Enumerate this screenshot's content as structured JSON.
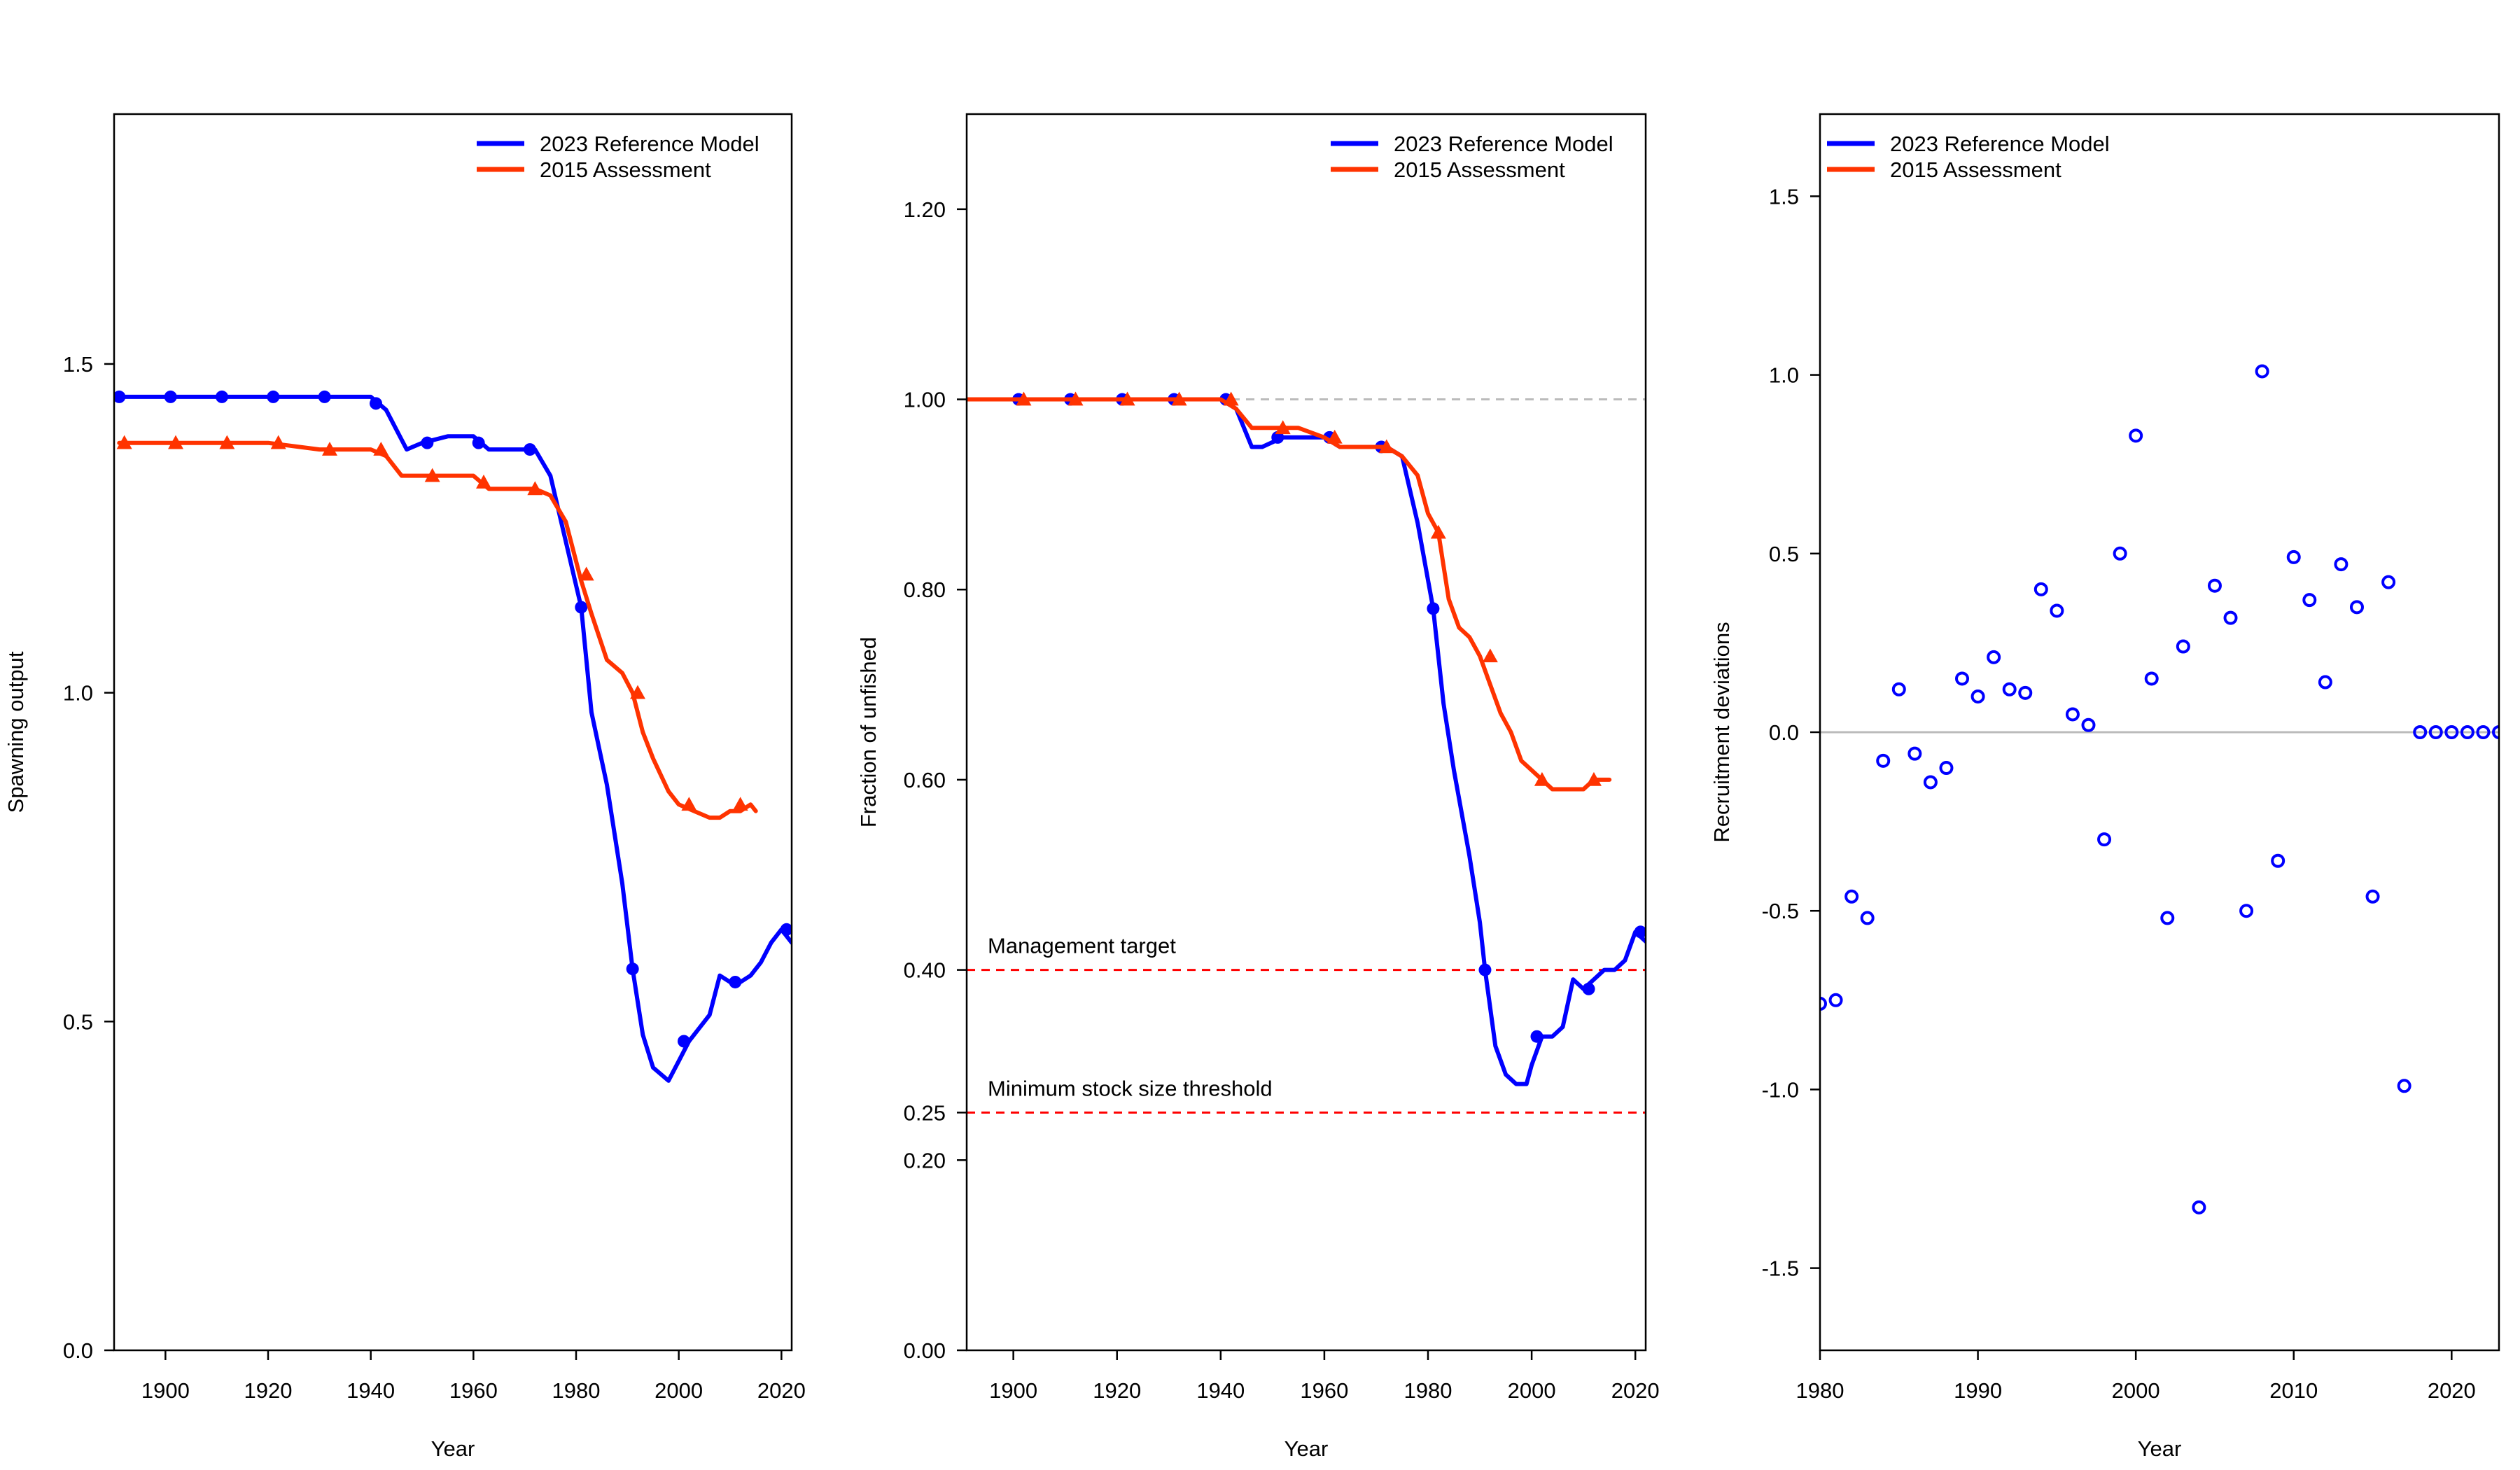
{
  "chart_data": [
    {
      "type": "line",
      "ylabel": "Spawning output",
      "xlabel": "Year",
      "xlim": [
        1890,
        2022
      ],
      "ylim": [
        0,
        1.88
      ],
      "xticks": [
        1900,
        1920,
        1940,
        1960,
        1980,
        2000,
        2020
      ],
      "xtick_labels": [
        "1900",
        "1920",
        "1940",
        "1960",
        "1980",
        "2000",
        "2020"
      ],
      "yticks": [
        0,
        0.5,
        1.0,
        1.5
      ],
      "ytick_labels": [
        "0.0",
        "0.5",
        "1.0",
        "1.5"
      ],
      "legend": "top-right",
      "series": [
        {
          "name": "2023 Reference Model",
          "color": "#0000ff",
          "marker": "circle",
          "x": [
            1891,
            1900,
            1910,
            1920,
            1930,
            1940,
            1943,
            1947,
            1950,
            1955,
            1960,
            1963,
            1968,
            1972,
            1975,
            1978,
            1981,
            1983,
            1986,
            1989,
            1991,
            1993,
            1995,
            1998,
            2000,
            2002,
            2004,
            2006,
            2008,
            2010,
            2012,
            2014,
            2016,
            2018,
            2020,
            2022
          ],
          "values": [
            1.45,
            1.45,
            1.45,
            1.45,
            1.45,
            1.45,
            1.43,
            1.37,
            1.38,
            1.39,
            1.39,
            1.37,
            1.37,
            1.37,
            1.33,
            1.23,
            1.13,
            0.97,
            0.86,
            0.71,
            0.58,
            0.48,
            0.43,
            0.41,
            0.44,
            0.47,
            0.49,
            0.51,
            0.57,
            0.56,
            0.56,
            0.57,
            0.59,
            0.62,
            0.64,
            0.62
          ],
          "marker_x": [
            1891,
            1901,
            1911,
            1921,
            1931,
            1941,
            1951,
            1961,
            1971,
            1981,
            1991,
            2001,
            2011,
            2021
          ],
          "marker_values": [
            1.45,
            1.45,
            1.45,
            1.45,
            1.45,
            1.44,
            1.38,
            1.38,
            1.37,
            1.13,
            0.58,
            0.47,
            0.56,
            0.64
          ]
        },
        {
          "name": "2015 Assessment",
          "color": "#ff3300",
          "marker": "triangle",
          "x": [
            1891,
            1900,
            1910,
            1920,
            1930,
            1940,
            1943,
            1946,
            1950,
            1955,
            1960,
            1963,
            1968,
            1972,
            1975,
            1978,
            1981,
            1983,
            1986,
            1989,
            1991,
            1993,
            1995,
            1998,
            2000,
            2003,
            2006,
            2008,
            2010,
            2012,
            2014,
            2015
          ],
          "values": [
            1.38,
            1.38,
            1.38,
            1.38,
            1.37,
            1.37,
            1.36,
            1.33,
            1.33,
            1.33,
            1.33,
            1.31,
            1.31,
            1.31,
            1.3,
            1.26,
            1.17,
            1.12,
            1.05,
            1.03,
            1.0,
            0.94,
            0.9,
            0.85,
            0.83,
            0.82,
            0.81,
            0.81,
            0.82,
            0.82,
            0.83,
            0.82
          ],
          "marker_x": [
            1892,
            1902,
            1912,
            1922,
            1932,
            1942,
            1952,
            1962,
            1972,
            1982,
            1992,
            2002,
            2012
          ],
          "marker_values": [
            1.38,
            1.38,
            1.38,
            1.38,
            1.37,
            1.37,
            1.33,
            1.32,
            1.31,
            1.18,
            1.0,
            0.83,
            0.83
          ]
        }
      ]
    },
    {
      "type": "line",
      "ylabel": "Fraction of unfished",
      "xlabel": "Year",
      "xlim": [
        1891,
        2022
      ],
      "ylim": [
        0,
        1.3
      ],
      "xticks": [
        1900,
        1920,
        1940,
        1960,
        1980,
        2000,
        2020
      ],
      "xtick_labels": [
        "1900",
        "1920",
        "1940",
        "1960",
        "1980",
        "2000",
        "2020"
      ],
      "yticks": [
        0,
        0.2,
        0.25,
        0.4,
        0.6,
        0.8,
        1.0,
        1.2
      ],
      "ytick_labels": [
        "0.00",
        "0.20",
        "0.25",
        "0.40",
        "0.60",
        "0.80",
        "1.00",
        "1.20"
      ],
      "legend": "top-right",
      "reference_lines": [
        {
          "y": 1.0,
          "color": "#bbbbbb",
          "style": "dashed",
          "label": ""
        },
        {
          "y": 0.4,
          "color": "#ff0000",
          "style": "dashed",
          "label": "Management target"
        },
        {
          "y": 0.25,
          "color": "#ff0000",
          "style": "dashed",
          "label": "Minimum stock size threshold"
        }
      ],
      "series": [
        {
          "name": "2023 Reference Model",
          "color": "#0000ff",
          "marker": "circle",
          "x": [
            1891,
            1900,
            1910,
            1920,
            1930,
            1940,
            1943,
            1946,
            1948,
            1952,
            1956,
            1960,
            1963,
            1968,
            1972,
            1975,
            1978,
            1981,
            1983,
            1985,
            1988,
            1990,
            1991,
            1993,
            1995,
            1997,
            1999,
            2000,
            2002,
            2004,
            2006,
            2008,
            2010,
            2012,
            2014,
            2016,
            2018,
            2020,
            2022
          ],
          "values": [
            1.0,
            1.0,
            1.0,
            1.0,
            1.0,
            1.0,
            0.99,
            0.95,
            0.95,
            0.96,
            0.96,
            0.96,
            0.95,
            0.95,
            0.95,
            0.94,
            0.87,
            0.78,
            0.68,
            0.61,
            0.52,
            0.45,
            0.4,
            0.32,
            0.29,
            0.28,
            0.28,
            0.3,
            0.33,
            0.33,
            0.34,
            0.39,
            0.38,
            0.39,
            0.4,
            0.4,
            0.41,
            0.44,
            0.43
          ],
          "marker_x": [
            1901,
            1911,
            1921,
            1931,
            1941,
            1951,
            1961,
            1971,
            1981,
            1991,
            2001,
            2011,
            2021
          ],
          "marker_values": [
            1.0,
            1.0,
            1.0,
            1.0,
            1.0,
            0.96,
            0.96,
            0.95,
            0.78,
            0.4,
            0.33,
            0.38,
            0.44
          ]
        },
        {
          "name": "2015 Assessment",
          "color": "#ff3300",
          "marker": "triangle",
          "x": [
            1891,
            1900,
            1910,
            1920,
            1930,
            1940,
            1943,
            1946,
            1950,
            1955,
            1960,
            1963,
            1968,
            1972,
            1975,
            1978,
            1980,
            1982,
            1984,
            1986,
            1988,
            1990,
            1992,
            1994,
            1996,
            1998,
            2000,
            2002,
            2004,
            2006,
            2008,
            2010,
            2012,
            2014,
            2015
          ],
          "values": [
            1.0,
            1.0,
            1.0,
            1.0,
            1.0,
            1.0,
            0.99,
            0.97,
            0.97,
            0.97,
            0.96,
            0.95,
            0.95,
            0.95,
            0.94,
            0.92,
            0.88,
            0.86,
            0.79,
            0.76,
            0.75,
            0.73,
            0.7,
            0.67,
            0.65,
            0.62,
            0.61,
            0.6,
            0.59,
            0.59,
            0.59,
            0.59,
            0.6,
            0.6,
            0.6
          ],
          "marker_x": [
            1902,
            1912,
            1922,
            1932,
            1942,
            1952,
            1962,
            1972,
            1982,
            1992,
            2002,
            2012
          ],
          "marker_values": [
            1.0,
            1.0,
            1.0,
            1.0,
            1.0,
            0.97,
            0.96,
            0.95,
            0.86,
            0.73,
            0.6,
            0.6
          ]
        }
      ]
    },
    {
      "type": "scatter",
      "ylabel": "Recruitment deviations",
      "xlabel": "Year",
      "xlim": [
        1980,
        2023
      ],
      "ylim": [
        -1.73,
        1.73
      ],
      "xticks": [
        1980,
        1990,
        2000,
        2010,
        2020
      ],
      "xtick_labels": [
        "1980",
        "1990",
        "2000",
        "2010",
        "2020"
      ],
      "yticks": [
        -1.5,
        -1.0,
        -0.5,
        0.0,
        0.5,
        1.0,
        1.5
      ],
      "ytick_labels": [
        "-1.5",
        "-1.0",
        "-0.5",
        "0.0",
        "0.5",
        "1.0",
        "1.5"
      ],
      "legend": "top-left",
      "legend_entries": [
        {
          "name": "2023 Reference Model",
          "color": "#0000ff"
        },
        {
          "name": "2015 Assessment",
          "color": "#ff3300"
        }
      ],
      "reference_lines": [
        {
          "y": 0.0,
          "color": "#bbbbbb",
          "style": "solid"
        }
      ],
      "series": [
        {
          "name": "2023 Reference Model",
          "color": "#0000ff",
          "marker": "open-circle",
          "x": [
            1980,
            1981,
            1982,
            1983,
            1984,
            1985,
            1986,
            1987,
            1988,
            1989,
            1990,
            1991,
            1992,
            1993,
            1994,
            1995,
            1996,
            1997,
            1998,
            1999,
            2000,
            2001,
            2002,
            2003,
            2004,
            2005,
            2006,
            2007,
            2008,
            2009,
            2010,
            2011,
            2012,
            2013,
            2014,
            2015,
            2016,
            2017,
            2018,
            2019,
            2020,
            2021,
            2022,
            2023
          ],
          "values": [
            -0.76,
            -0.75,
            -0.46,
            -0.52,
            -0.08,
            0.12,
            -0.06,
            -0.14,
            -0.1,
            0.15,
            0.1,
            0.21,
            0.12,
            0.11,
            0.4,
            0.34,
            0.05,
            0.02,
            -0.3,
            0.5,
            0.83,
            0.15,
            -0.52,
            0.24,
            -1.33,
            0.41,
            0.32,
            -0.5,
            1.01,
            -0.36,
            0.49,
            0.37,
            0.14,
            0.47,
            0.35,
            -0.46,
            0.42,
            -0.99,
            0.0,
            0.0,
            0.0,
            0.0,
            0.0,
            0.0
          ]
        }
      ]
    }
  ]
}
